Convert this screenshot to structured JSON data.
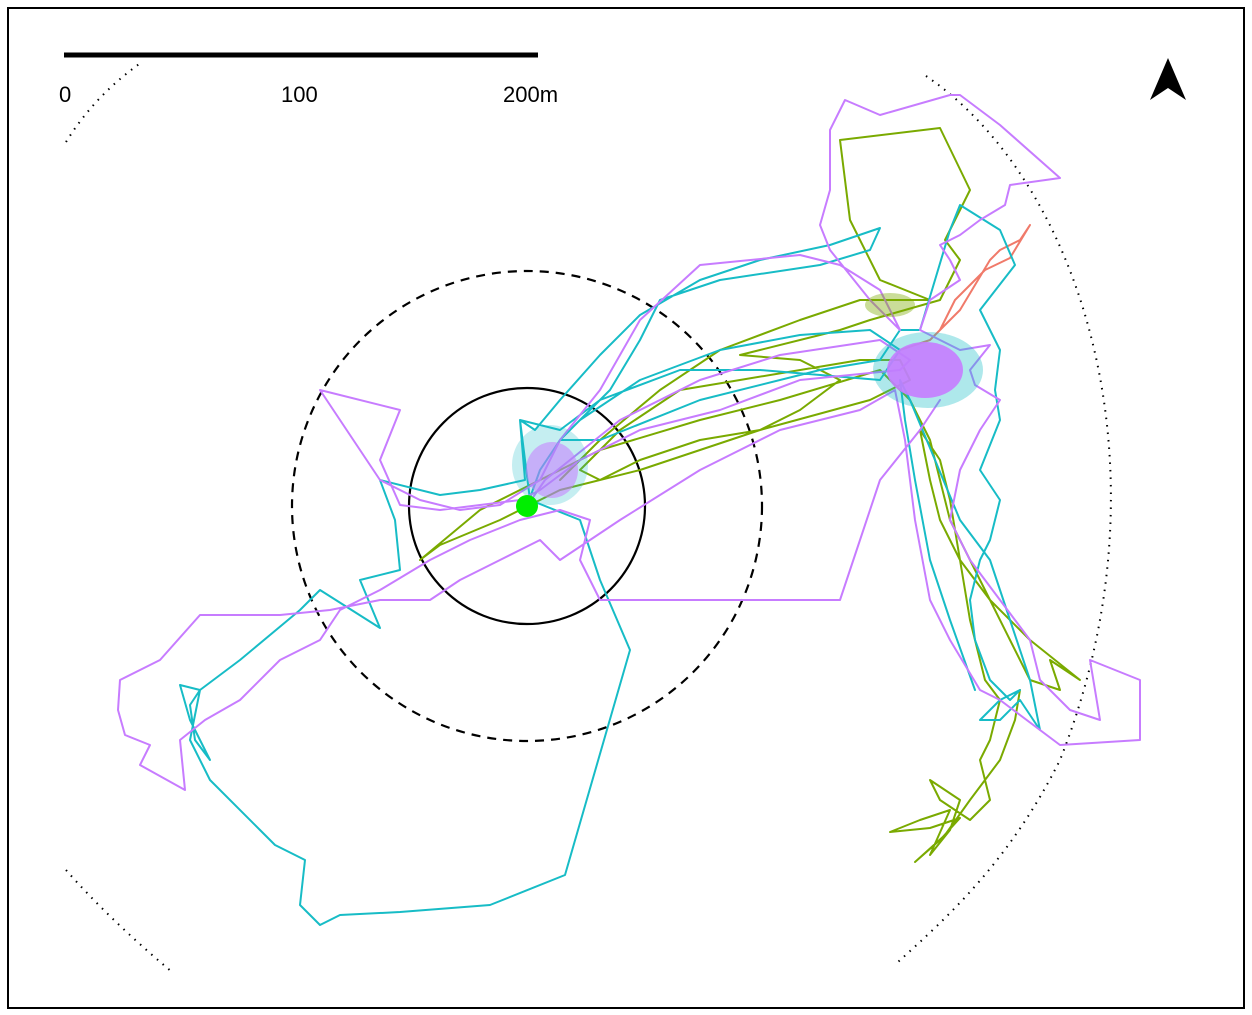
{
  "scale_bar": {
    "labels": [
      "0",
      "100",
      "200m"
    ]
  },
  "north_arrow": {
    "icon": "north-arrow-icon"
  },
  "colors": {
    "track_red": "#f07a6a",
    "track_green": "#7aaa00",
    "track_teal": "#17bcc6",
    "track_purple": "#c77cff",
    "site_marker": "#00ee00"
  }
}
